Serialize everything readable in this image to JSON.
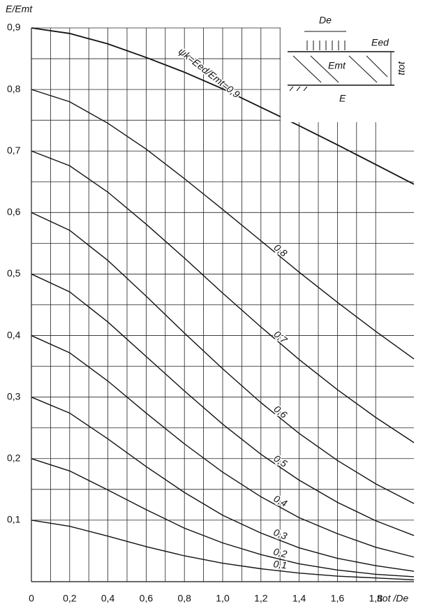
{
  "chart_data": {
    "type": "line",
    "y_label": "E/Emt",
    "x_label": "ttot /De",
    "x": [
      0,
      0.2,
      0.4,
      0.6,
      0.8,
      1.0,
      1.2,
      1.4,
      1.6,
      1.8,
      2.0
    ],
    "xlim": [
      0,
      2.0
    ],
    "ylim": [
      0,
      0.9
    ],
    "xticks": [
      {
        "value": 0,
        "label": "0"
      },
      {
        "value": 0.2,
        "label": "0,2"
      },
      {
        "value": 0.4,
        "label": "0,4"
      },
      {
        "value": 0.6,
        "label": "0,6"
      },
      {
        "value": 0.8,
        "label": "0,8"
      },
      {
        "value": 1.0,
        "label": "1,0"
      },
      {
        "value": 1.2,
        "label": "1,2"
      },
      {
        "value": 1.4,
        "label": "1,4"
      },
      {
        "value": 1.6,
        "label": "1,6"
      },
      {
        "value": 1.8,
        "label": "1,8"
      }
    ],
    "yticks": [
      {
        "value": 0.1,
        "label": "0,1"
      },
      {
        "value": 0.2,
        "label": "0,2"
      },
      {
        "value": 0.3,
        "label": "0,3"
      },
      {
        "value": 0.4,
        "label": "0,4"
      },
      {
        "value": 0.5,
        "label": "0,5"
      },
      {
        "value": 0.6,
        "label": "0,6"
      },
      {
        "value": 0.7,
        "label": "0,7"
      },
      {
        "value": 0.8,
        "label": "0,8"
      },
      {
        "value": 0.9,
        "label": "0,9"
      }
    ],
    "grid": true,
    "series": [
      {
        "name": "ψk=Eed/Emt=0,9",
        "color": "#111111",
        "values": [
          0.9,
          0.891,
          0.874,
          0.852,
          0.828,
          0.801,
          0.771,
          0.741,
          0.71,
          0.678,
          0.646
        ]
      },
      {
        "name": "0,8",
        "color": "#111111",
        "values": [
          0.8,
          0.78,
          0.745,
          0.703,
          0.655,
          0.605,
          0.554,
          0.503,
          0.454,
          0.407,
          0.362
        ]
      },
      {
        "name": "0,7",
        "color": "#111111",
        "values": [
          0.7,
          0.676,
          0.633,
          0.581,
          0.526,
          0.469,
          0.414,
          0.361,
          0.312,
          0.267,
          0.226
        ]
      },
      {
        "name": "0,6",
        "color": "#111111",
        "values": [
          0.6,
          0.571,
          0.522,
          0.464,
          0.404,
          0.346,
          0.291,
          0.241,
          0.197,
          0.159,
          0.127
        ]
      },
      {
        "name": "0,5",
        "color": "#111111",
        "values": [
          0.5,
          0.471,
          0.422,
          0.366,
          0.31,
          0.256,
          0.207,
          0.165,
          0.129,
          0.099,
          0.075
        ]
      },
      {
        "name": "0,4",
        "color": "#111111",
        "values": [
          0.4,
          0.372,
          0.326,
          0.274,
          0.224,
          0.178,
          0.138,
          0.104,
          0.078,
          0.056,
          0.04
        ]
      },
      {
        "name": "0,3",
        "color": "#111111",
        "values": [
          0.3,
          0.274,
          0.232,
          0.187,
          0.145,
          0.108,
          0.079,
          0.055,
          0.038,
          0.026,
          0.017
        ]
      },
      {
        "name": "0,2",
        "color": "#111111",
        "values": [
          0.2,
          0.18,
          0.149,
          0.117,
          0.087,
          0.063,
          0.044,
          0.029,
          0.019,
          0.012,
          0.008
        ]
      },
      {
        "name": "0,1",
        "color": "#111111",
        "values": [
          0.1,
          0.09,
          0.074,
          0.057,
          0.042,
          0.03,
          0.021,
          0.014,
          0.009,
          0.006,
          0.003
        ]
      }
    ],
    "inset": {
      "load_width": "De",
      "top_modulus": "Eed",
      "layer_modulus": "Emt",
      "thickness": "ttot",
      "subgrade_modulus": "E"
    }
  }
}
